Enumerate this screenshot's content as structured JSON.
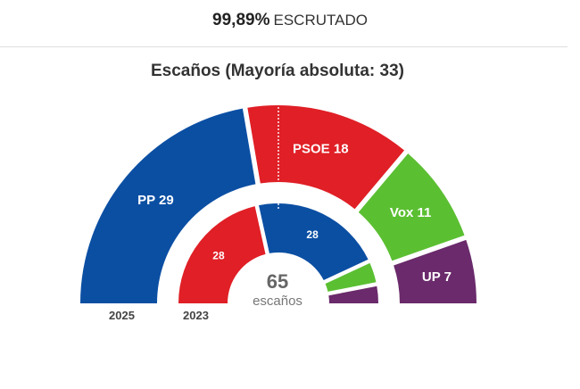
{
  "header": {
    "percent": "99,89%",
    "label": "ESCRUTADO"
  },
  "chart_title": "Escaños (Mayoría absoluta: 33)",
  "center": {
    "total": "65",
    "unit": "escaños"
  },
  "chart_data": {
    "type": "pie",
    "title": "Escaños (Mayoría absoluta: 33)",
    "total_seats": 65,
    "majority": 33,
    "series": [
      {
        "name": "2025",
        "slices": [
          {
            "party": "PP",
            "seats": 29,
            "color": "#0b4fa3",
            "label": "PP 29"
          },
          {
            "party": "PSOE",
            "seats": 18,
            "color": "#e01f26",
            "label": "PSOE 18"
          },
          {
            "party": "Vox",
            "seats": 11,
            "color": "#5bbf32",
            "label": "Vox 11"
          },
          {
            "party": "UP",
            "seats": 7,
            "color": "#6a2a6b",
            "label": "UP 7"
          }
        ]
      },
      {
        "name": "2023",
        "slices": [
          {
            "party": "PSOE",
            "seats": 28,
            "color": "#e01f26",
            "label": "28"
          },
          {
            "party": "PP",
            "seats": 28,
            "color": "#0b4fa3",
            "label": "28"
          },
          {
            "party": "Vox",
            "seats": 5,
            "color": "#5bbf32",
            "label": ""
          },
          {
            "party": "UP",
            "seats": 4,
            "color": "#6a2a6b",
            "label": ""
          }
        ]
      }
    ]
  }
}
